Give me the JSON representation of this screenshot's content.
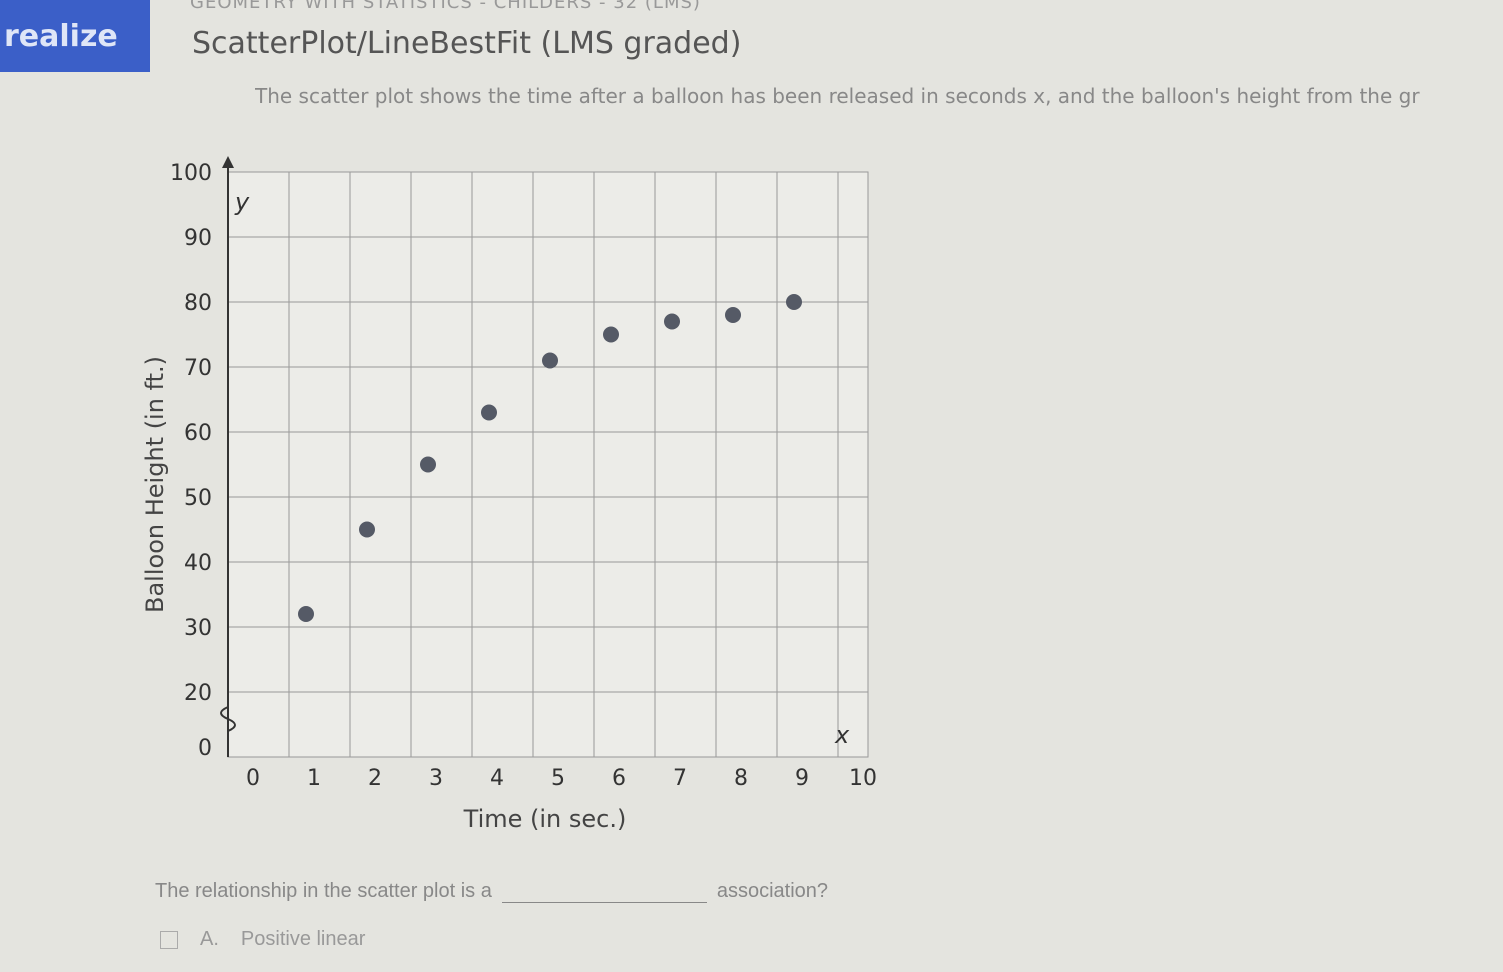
{
  "header": {
    "logo": "realize",
    "course": "GEOMETRY WITH STATISTICS - CHILDERS - 32 (LMS)",
    "title": "ScatterPlot/LineBestFit (LMS graded)"
  },
  "description": "The scatter plot shows the time after a balloon has been released in seconds x, and the balloon's height from the gr",
  "chart_data": {
    "type": "scatter",
    "title": "",
    "xlabel": "Time (in sec.)",
    "ylabel": "Balloon Height (in ft.)",
    "x_axis_var": "x",
    "y_axis_var": "y",
    "xlim": [
      0,
      10
    ],
    "ylim": [
      0,
      100
    ],
    "y_axis_break": "between 0 and 20",
    "xticks": [
      "0",
      "1",
      "2",
      "3",
      "4",
      "5",
      "6",
      "7",
      "8",
      "9",
      "10"
    ],
    "yticks": [
      "0",
      "20",
      "30",
      "40",
      "50",
      "60",
      "70",
      "80",
      "90",
      "100"
    ],
    "grid": true,
    "point_color": "#555a66",
    "x": [
      1,
      2,
      3,
      4,
      5,
      6,
      7,
      8,
      9
    ],
    "y": [
      32,
      45,
      55,
      63,
      71,
      75,
      77,
      78,
      80
    ]
  },
  "question": {
    "prompt": "The relationship in the scatter plot is a",
    "suffix": "association?",
    "options": [
      {
        "letter": "A.",
        "label": "Positive linear"
      }
    ]
  }
}
